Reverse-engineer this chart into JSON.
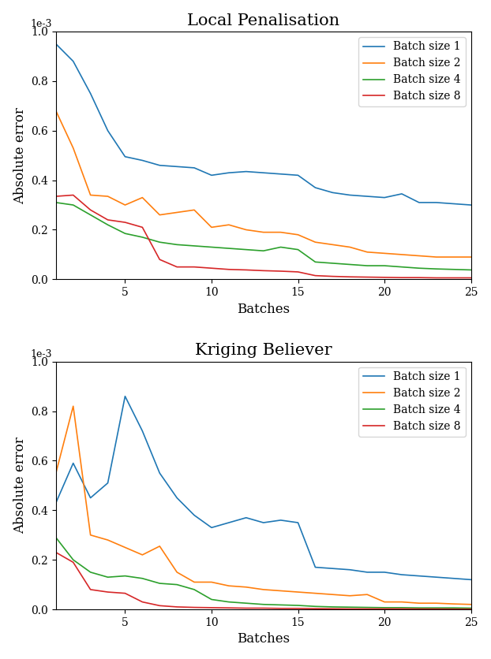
{
  "title1": "Local Penalisation",
  "title2": "Kriging Believer",
  "xlabel": "Batches",
  "ylabel": "Absolute error",
  "colors": [
    "#1f77b4",
    "#ff7f0e",
    "#2ca02c",
    "#d62728"
  ],
  "legend_labels": [
    "Batch size 1",
    "Batch size 2",
    "Batch size 4",
    "Batch size 8"
  ],
  "xlim": [
    1,
    25
  ],
  "ylim": [
    0.0,
    0.001
  ],
  "yticks": [
    0.0,
    0.0002,
    0.0004,
    0.0006,
    0.0008,
    0.001
  ],
  "xticks": [
    5,
    10,
    15,
    20,
    25
  ],
  "lp_x1": [
    1,
    2,
    3,
    4,
    5,
    6,
    7,
    8,
    9,
    10,
    11,
    12,
    13,
    14,
    15,
    16,
    17,
    18,
    19,
    20,
    21,
    22,
    23,
    24,
    25
  ],
  "lp_y1": [
    0.00095,
    0.00088,
    0.00075,
    0.0006,
    0.000495,
    0.00048,
    0.00046,
    0.000455,
    0.00045,
    0.00042,
    0.00043,
    0.000435,
    0.00043,
    0.000425,
    0.00042,
    0.00037,
    0.00035,
    0.00034,
    0.000335,
    0.00033,
    0.000345,
    0.00031,
    0.00031,
    0.000305,
    0.0003
  ],
  "lp_y2": [
    0.00068,
    0.00053,
    0.00034,
    0.000335,
    0.0003,
    0.00033,
    0.00026,
    0.00027,
    0.00028,
    0.00021,
    0.00022,
    0.0002,
    0.00019,
    0.00019,
    0.00018,
    0.00015,
    0.00014,
    0.00013,
    0.00011,
    0.000105,
    0.0001,
    9.5e-05,
    9e-05,
    9e-05,
    9e-05
  ],
  "lp_y4": [
    0.00031,
    0.0003,
    0.00026,
    0.00022,
    0.000185,
    0.00017,
    0.00015,
    0.00014,
    0.000135,
    0.00013,
    0.000125,
    0.00012,
    0.000115,
    0.00013,
    0.00012,
    7e-05,
    6.5e-05,
    6e-05,
    5.5e-05,
    5.5e-05,
    5e-05,
    4.5e-05,
    4.2e-05,
    4e-05,
    3.8e-05
  ],
  "lp_y8": [
    0.000335,
    0.00034,
    0.00028,
    0.00024,
    0.00023,
    0.00021,
    8e-05,
    5e-05,
    5e-05,
    4.5e-05,
    4e-05,
    3.8e-05,
    3.5e-05,
    3.3e-05,
    3e-05,
    1.5e-05,
    1.2e-05,
    1e-05,
    9e-06,
    8e-06,
    7e-06,
    7e-06,
    6e-06,
    6e-06,
    6e-06
  ],
  "kb_y1": [
    0.00043,
    0.00059,
    0.00045,
    0.00051,
    0.00086,
    0.00072,
    0.00055,
    0.00045,
    0.00038,
    0.00033,
    0.00035,
    0.00037,
    0.00035,
    0.00036,
    0.00035,
    0.00017,
    0.000165,
    0.00016,
    0.00015,
    0.00015,
    0.00014,
    0.000135,
    0.00013,
    0.000125,
    0.00012
  ],
  "kb_y2": [
    0.00055,
    0.00082,
    0.0003,
    0.00028,
    0.00025,
    0.00022,
    0.000255,
    0.00015,
    0.00011,
    0.00011,
    9.5e-05,
    9e-05,
    8e-05,
    7.5e-05,
    7e-05,
    6.5e-05,
    6e-05,
    5.5e-05,
    6e-05,
    3e-05,
    3e-05,
    2.5e-05,
    2.5e-05,
    2.2e-05,
    2e-05
  ],
  "kb_y4": [
    0.00029,
    0.0002,
    0.00015,
    0.00013,
    0.000135,
    0.000125,
    0.000105,
    0.0001,
    8e-05,
    4e-05,
    3e-05,
    2.5e-05,
    2e-05,
    1.8e-05,
    1.6e-05,
    1.2e-05,
    1e-05,
    9e-06,
    8e-06,
    7e-06,
    7e-06,
    6e-06,
    6e-06,
    6e-06,
    5e-06
  ],
  "kb_y8": [
    0.00023,
    0.00019,
    8e-05,
    7e-05,
    6.5e-05,
    3e-05,
    1.5e-05,
    1e-05,
    8e-06,
    7e-06,
    6e-06,
    5e-06,
    5e-06,
    4e-06,
    4e-06,
    3e-06,
    2.5e-06,
    2e-06,
    2e-06,
    2e-06,
    2e-06,
    1.5e-06,
    1.5e-06,
    1e-06,
    1e-06
  ]
}
